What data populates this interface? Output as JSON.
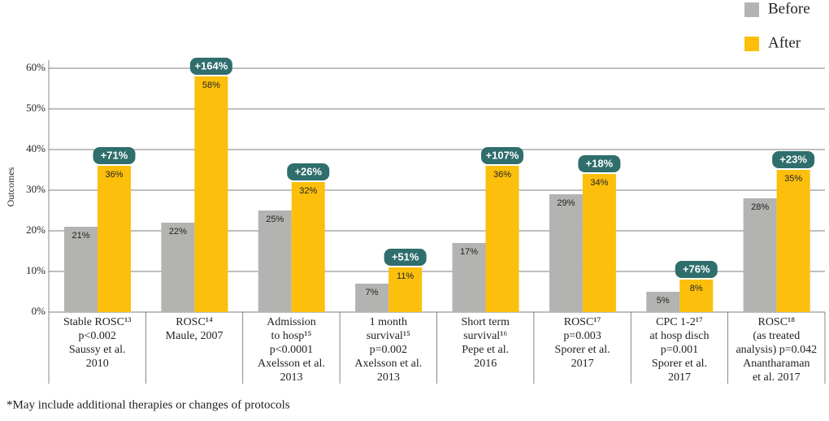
{
  "chart_data": {
    "type": "bar",
    "y_label": "Outcomes",
    "categories": [
      [
        "Stable ROSC¹³",
        "p<0.002",
        "Saussy et al.",
        "2010"
      ],
      [
        "ROSC¹⁴",
        "Maule, 2007"
      ],
      [
        "Admission",
        "to hosp¹⁵",
        "p<0.0001",
        "Axelsson et al.",
        "2013"
      ],
      [
        "1 month",
        "survival¹⁵",
        "p=0.002",
        "Axelsson et al.",
        "2013"
      ],
      [
        "Short term",
        "survival¹⁶",
        "Pepe et al.",
        "2016"
      ],
      [
        "ROSC¹⁷",
        "p=0.003",
        "Sporer et al.",
        "2017"
      ],
      [
        "CPC 1-2¹⁷",
        "at hosp disch",
        "p=0.001",
        "Sporer et al.",
        "2017"
      ],
      [
        "ROSC¹⁸",
        "(as treated",
        "analysis) p=0.042",
        "Anantharaman",
        "et al. 2017"
      ]
    ],
    "series": [
      {
        "name": "Before",
        "color": "#b3b3b1",
        "values": [
          21,
          22,
          25,
          7,
          17,
          29,
          5,
          28
        ],
        "value_labels": [
          "21%",
          "22%",
          "25%",
          "7%",
          "17%",
          "29%",
          "5%",
          "28%"
        ]
      },
      {
        "name": "After",
        "color": "#fbbf0c",
        "values": [
          36,
          58,
          32,
          11,
          36,
          34,
          8,
          35
        ],
        "value_labels": [
          "36%",
          "58%",
          "32%",
          "11%",
          "36%",
          "34%",
          "8%",
          "35%"
        ]
      }
    ],
    "change_labels": [
      "+71%",
      "+164%",
      "+26%",
      "+51%",
      "+107%",
      "+18%",
      "+76%",
      "+23%"
    ],
    "change_color": "#2f6e6c",
    "ylim": [
      0,
      60
    ],
    "yticks": [
      {
        "value": 0,
        "label": "0%"
      },
      {
        "value": 10,
        "label": "10%"
      },
      {
        "value": 20,
        "label": "20%"
      },
      {
        "value": 30,
        "label": "30%"
      },
      {
        "value": 40,
        "label": "40%"
      },
      {
        "value": 50,
        "label": "50%"
      },
      {
        "value": 60,
        "label": "60%"
      }
    ],
    "grid": true,
    "footnote": "*May include additional therapies or changes of protocols"
  }
}
